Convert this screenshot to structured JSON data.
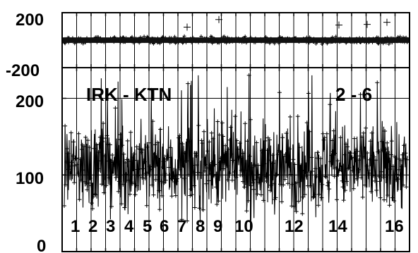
{
  "chart_data": [
    {
      "panel": "top",
      "type": "scatter",
      "title": "",
      "xlabel": "",
      "ylabel": "",
      "ylim": [
        -200,
        200
      ],
      "yticks": [
        {
          "value": 200,
          "label": "200"
        },
        {
          "value": -200,
          "label": "-200"
        }
      ],
      "grid": true,
      "legend": "none",
      "marker": "plus",
      "color": "#000000",
      "series": [
        {
          "y_center": 0,
          "y_spread": 25,
          "outliers": [
            95,
            130,
            110,
            150,
            115
          ]
        }
      ]
    },
    {
      "panel": "bottom",
      "type": "line",
      "title": "",
      "xlabel": "",
      "ylabel": "",
      "ylim": [
        0,
        240
      ],
      "yticks": [
        {
          "value": 200,
          "label": "200"
        },
        {
          "value": 100,
          "label": "100"
        },
        {
          "value": 0,
          "label": "0"
        }
      ],
      "grid": true,
      "legend": "none",
      "marker": "plus",
      "color": "#000000",
      "annotations": [
        "IRK - KTN",
        "2 - 6"
      ],
      "categories": [
        "1",
        "2",
        "3",
        "4",
        "5",
        "6",
        "7",
        "8",
        "9",
        "10",
        "12",
        "14",
        "16"
      ],
      "series": [
        {
          "y_center": 110,
          "y_spread": 55,
          "y_min": 40,
          "y_max": 230
        }
      ]
    }
  ]
}
